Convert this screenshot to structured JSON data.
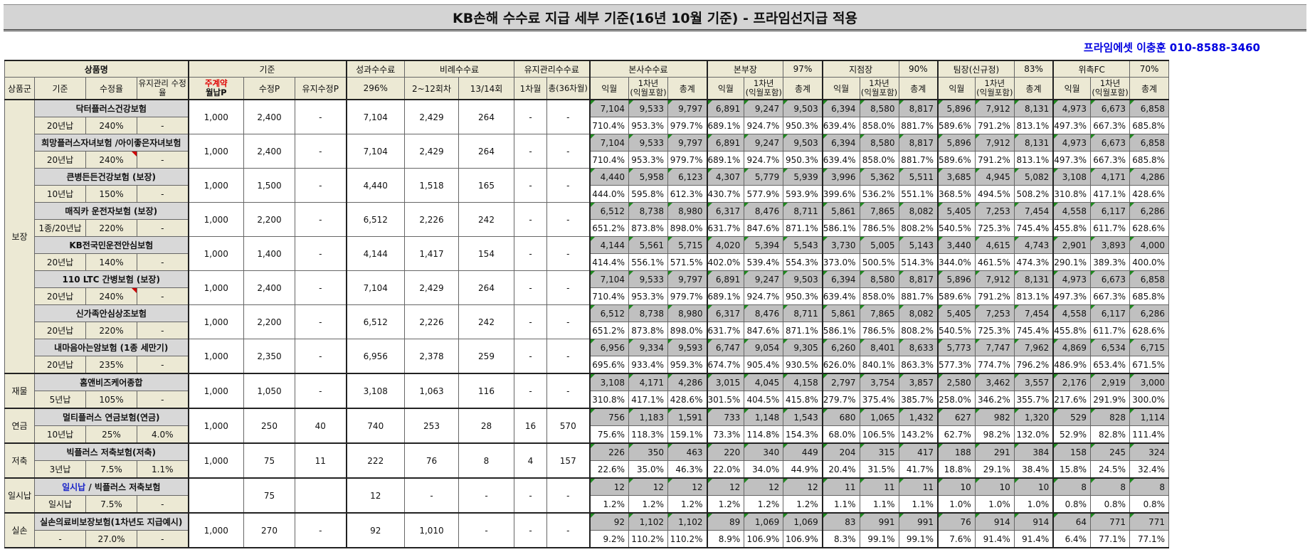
{
  "title": "KB손해 수수료 지급 세부 기준(16년 10월 기준) - 프라임선지급 적용",
  "contact": "프라임에셋 이충훈 010-8588-3460",
  "header": {
    "product_name": "상품명",
    "gijun": "기준",
    "performance_fee": "성과수수료",
    "proportional_fee": "비례수수료",
    "maintenance_fee": "유지관리수수료",
    "hq_fee": "본사수수료",
    "bonbujang": "본부장",
    "bonbujang_pct": "97%",
    "jijeomjang": "지점장",
    "jijeomjang_pct": "90%",
    "timjang": "팀장(신규정)",
    "timjang_pct": "83%",
    "fc": "위촉FC",
    "fc_pct": "70%",
    "sub": {
      "group": "상품군",
      "gijun": "기준",
      "rate": "수정율",
      "maint_rate": "유지관리 수정율",
      "premium_top": "주계약",
      "premium_bottom": "월납P",
      "modified_p": "수정P",
      "maint_p": "유지수정P",
      "perf_pct": "296%",
      "p1": "2~12회차",
      "p2": "13/14회",
      "m1": "1차월",
      "m2": "총(36차월)",
      "ikwol": "익월",
      "first_year_top": "1차년",
      "first_year_bottom": "(익월포함)",
      "total": "총계"
    }
  },
  "groups": [
    {
      "name": "보장",
      "rows": 8
    },
    {
      "name": "재물",
      "rows": 1
    },
    {
      "name": "연금",
      "rows": 1
    },
    {
      "name": "저축",
      "rows": 1
    },
    {
      "name": "일시납",
      "rows": 1
    },
    {
      "name": "실손",
      "rows": 1
    }
  ],
  "products": [
    {
      "name": "닥터플러스건강보험",
      "name_blue": "",
      "gijun": "20년납",
      "rate": "240%",
      "maint": "-",
      "premium": "1,000",
      "mod_p": "2,400",
      "maint_p": "-",
      "perf": "7,104",
      "p1": "2,429",
      "p2": "264",
      "m1": "-",
      "m2": "-",
      "amounts": [
        "7,104",
        "9,533",
        "9,797",
        "6,891",
        "9,247",
        "9,503",
        "6,394",
        "8,580",
        "8,817",
        "5,896",
        "7,912",
        "8,131",
        "4,973",
        "6,673",
        "6,858"
      ],
      "pcts": [
        "710.4%",
        "953.3%",
        "979.7%",
        "689.1%",
        "924.7%",
        "950.3%",
        "639.4%",
        "858.0%",
        "881.7%",
        "589.6%",
        "791.2%",
        "813.1%",
        "497.3%",
        "667.3%",
        "685.8%"
      ]
    },
    {
      "name": "희망플러스자녀보험 /아이좋은자녀보험",
      "name_blue": "",
      "gijun": "20년납",
      "rate": "240%",
      "maint": "-",
      "premium": "1,000",
      "mod_p": "2,400",
      "maint_p": "-",
      "perf": "7,104",
      "p1": "2,429",
      "p2": "264",
      "m1": "-",
      "m2": "-",
      "amounts": [
        "7,104",
        "9,533",
        "9,797",
        "6,891",
        "9,247",
        "9,503",
        "6,394",
        "8,580",
        "8,817",
        "5,896",
        "7,912",
        "8,131",
        "4,973",
        "6,673",
        "6,858"
      ],
      "pcts": [
        "710.4%",
        "953.3%",
        "979.7%",
        "689.1%",
        "924.7%",
        "950.3%",
        "639.4%",
        "858.0%",
        "881.7%",
        "589.6%",
        "791.2%",
        "813.1%",
        "497.3%",
        "667.3%",
        "685.8%"
      ]
    },
    {
      "name": "큰병든든건강보험 (보장)",
      "name_blue": "",
      "gijun": "10년납",
      "rate": "150%",
      "maint": "-",
      "premium": "1,000",
      "mod_p": "1,500",
      "maint_p": "-",
      "perf": "4,440",
      "p1": "1,518",
      "p2": "165",
      "m1": "-",
      "m2": "-",
      "amounts": [
        "4,440",
        "5,958",
        "6,123",
        "4,307",
        "5,779",
        "5,939",
        "3,996",
        "5,362",
        "5,511",
        "3,685",
        "4,945",
        "5,082",
        "3,108",
        "4,171",
        "4,286"
      ],
      "pcts": [
        "444.0%",
        "595.8%",
        "612.3%",
        "430.7%",
        "577.9%",
        "593.9%",
        "399.6%",
        "536.2%",
        "551.1%",
        "368.5%",
        "494.5%",
        "508.2%",
        "310.8%",
        "417.1%",
        "428.6%"
      ]
    },
    {
      "name": "매직카 운전자보험 (보장)",
      "name_blue": "",
      "gijun": "1종/20년납",
      "rate": "220%",
      "maint": "-",
      "premium": "1,000",
      "mod_p": "2,200",
      "maint_p": "-",
      "perf": "6,512",
      "p1": "2,226",
      "p2": "242",
      "m1": "-",
      "m2": "-",
      "amounts": [
        "6,512",
        "8,738",
        "8,980",
        "6,317",
        "8,476",
        "8,711",
        "5,861",
        "7,865",
        "8,082",
        "5,405",
        "7,253",
        "7,454",
        "4,558",
        "6,117",
        "6,286"
      ],
      "pcts": [
        "651.2%",
        "873.8%",
        "898.0%",
        "631.7%",
        "847.6%",
        "871.1%",
        "586.1%",
        "786.5%",
        "808.2%",
        "540.5%",
        "725.3%",
        "745.4%",
        "455.8%",
        "611.7%",
        "628.6%"
      ]
    },
    {
      "name": "KB전국민운전안심보험",
      "name_blue": "",
      "gijun": "20년납",
      "rate": "140%",
      "maint": "-",
      "premium": "1,000",
      "mod_p": "1,400",
      "maint_p": "-",
      "perf": "4,144",
      "p1": "1,417",
      "p2": "154",
      "m1": "-",
      "m2": "-",
      "amounts": [
        "4,144",
        "5,561",
        "5,715",
        "4,020",
        "5,394",
        "5,543",
        "3,730",
        "5,005",
        "5,143",
        "3,440",
        "4,615",
        "4,743",
        "2,901",
        "3,893",
        "4,000"
      ],
      "pcts": [
        "414.4%",
        "556.1%",
        "571.5%",
        "402.0%",
        "539.4%",
        "554.3%",
        "373.0%",
        "500.5%",
        "514.3%",
        "344.0%",
        "461.5%",
        "474.3%",
        "290.1%",
        "389.3%",
        "400.0%"
      ]
    },
    {
      "name": "110 LTC 간병보험 (보장)",
      "name_blue": "",
      "gijun": "20년납",
      "rate": "240%",
      "maint": "-",
      "premium": "1,000",
      "mod_p": "2,400",
      "maint_p": "-",
      "perf": "7,104",
      "p1": "2,429",
      "p2": "264",
      "m1": "-",
      "m2": "-",
      "amounts": [
        "7,104",
        "9,533",
        "9,797",
        "6,891",
        "9,247",
        "9,503",
        "6,394",
        "8,580",
        "8,817",
        "5,896",
        "7,912",
        "8,131",
        "4,973",
        "6,673",
        "6,858"
      ],
      "pcts": [
        "710.4%",
        "953.3%",
        "979.7%",
        "689.1%",
        "924.7%",
        "950.3%",
        "639.4%",
        "858.0%",
        "881.7%",
        "589.6%",
        "791.2%",
        "813.1%",
        "497.3%",
        "667.3%",
        "685.8%"
      ]
    },
    {
      "name": "신가족안심상조보험",
      "name_blue": "",
      "gijun": "20년납",
      "rate": "220%",
      "maint": "-",
      "premium": "1,000",
      "mod_p": "2,200",
      "maint_p": "-",
      "perf": "6,512",
      "p1": "2,226",
      "p2": "242",
      "m1": "-",
      "m2": "-",
      "amounts": [
        "6,512",
        "8,738",
        "8,980",
        "6,317",
        "8,476",
        "8,711",
        "5,861",
        "7,865",
        "8,082",
        "5,405",
        "7,253",
        "7,454",
        "4,558",
        "6,117",
        "6,286"
      ],
      "pcts": [
        "651.2%",
        "873.8%",
        "898.0%",
        "631.7%",
        "847.6%",
        "871.1%",
        "586.1%",
        "786.5%",
        "808.2%",
        "540.5%",
        "725.3%",
        "745.4%",
        "455.8%",
        "611.7%",
        "628.6%"
      ]
    },
    {
      "name": "내마음아는암보험 (1종 세만기)",
      "name_blue": "",
      "gijun": "20년납",
      "rate": "235%",
      "maint": "-",
      "premium": "1,000",
      "mod_p": "2,350",
      "maint_p": "-",
      "perf": "6,956",
      "p1": "2,378",
      "p2": "259",
      "m1": "-",
      "m2": "-",
      "amounts": [
        "6,956",
        "9,334",
        "9,593",
        "6,747",
        "9,054",
        "9,305",
        "6,260",
        "8,401",
        "8,633",
        "5,773",
        "7,747",
        "7,962",
        "4,869",
        "6,534",
        "6,715"
      ],
      "pcts": [
        "695.6%",
        "933.4%",
        "959.3%",
        "674.7%",
        "905.4%",
        "930.5%",
        "626.0%",
        "840.1%",
        "863.3%",
        "577.3%",
        "774.7%",
        "796.2%",
        "486.9%",
        "653.4%",
        "671.5%"
      ]
    },
    {
      "name": "홈앤비즈케어종합",
      "name_blue": "",
      "gijun": "5년납",
      "rate": "105%",
      "maint": "-",
      "premium": "1,000",
      "mod_p": "1,050",
      "maint_p": "-",
      "perf": "3,108",
      "p1": "1,063",
      "p2": "116",
      "m1": "-",
      "m2": "-",
      "amounts": [
        "3,108",
        "4,171",
        "4,286",
        "3,015",
        "4,045",
        "4,158",
        "2,797",
        "3,754",
        "3,857",
        "2,580",
        "3,462",
        "3,557",
        "2,176",
        "2,919",
        "3,000"
      ],
      "pcts": [
        "310.8%",
        "417.1%",
        "428.6%",
        "301.5%",
        "404.5%",
        "415.8%",
        "279.7%",
        "375.4%",
        "385.7%",
        "258.0%",
        "346.2%",
        "355.7%",
        "217.6%",
        "291.9%",
        "300.0%"
      ]
    },
    {
      "name": "멀티플러스 연금보험(연금)",
      "name_blue": "",
      "gijun": "10년납",
      "rate": "25%",
      "maint": "4.0%",
      "premium": "1,000",
      "mod_p": "250",
      "maint_p": "40",
      "perf": "740",
      "p1": "253",
      "p2": "28",
      "m1": "16",
      "m2": "570",
      "amounts": [
        "756",
        "1,183",
        "1,591",
        "733",
        "1,148",
        "1,543",
        "680",
        "1,065",
        "1,432",
        "627",
        "982",
        "1,320",
        "529",
        "828",
        "1,114"
      ],
      "pcts": [
        "75.6%",
        "118.3%",
        "159.1%",
        "73.3%",
        "114.8%",
        "154.3%",
        "68.0%",
        "106.5%",
        "143.2%",
        "62.7%",
        "98.2%",
        "132.0%",
        "52.9%",
        "82.8%",
        "111.4%"
      ]
    },
    {
      "name": "빅플러스 저축보험(저축)",
      "name_blue": "",
      "gijun": "3년납",
      "rate": "7.5%",
      "maint": "1.1%",
      "premium": "1,000",
      "mod_p": "75",
      "maint_p": "11",
      "perf": "222",
      "p1": "76",
      "p2": "8",
      "m1": "4",
      "m2": "157",
      "amounts": [
        "226",
        "350",
        "463",
        "220",
        "340",
        "449",
        "204",
        "315",
        "417",
        "188",
        "291",
        "384",
        "158",
        "245",
        "324"
      ],
      "pcts": [
        "22.6%",
        "35.0%",
        "46.3%",
        "22.0%",
        "34.0%",
        "44.9%",
        "20.4%",
        "31.5%",
        "41.7%",
        "18.8%",
        "29.1%",
        "38.4%",
        "15.8%",
        "24.5%",
        "32.4%"
      ]
    },
    {
      "name": " / 빅플러스 저축보험",
      "name_blue": "일시납",
      "gijun": "일시납",
      "rate": "7.5%",
      "maint": "-",
      "premium": "",
      "mod_p": "75",
      "maint_p": "",
      "perf": "12",
      "p1": "-",
      "p2": "-",
      "m1": "-",
      "m2": "-",
      "amounts": [
        "12",
        "12",
        "12",
        "12",
        "12",
        "12",
        "11",
        "11",
        "11",
        "10",
        "10",
        "10",
        "8",
        "8",
        "8"
      ],
      "pcts": [
        "1.2%",
        "1.2%",
        "1.2%",
        "1.2%",
        "1.2%",
        "1.2%",
        "1.1%",
        "1.1%",
        "1.1%",
        "1.0%",
        "1.0%",
        "1.0%",
        "0.8%",
        "0.8%",
        "0.8%"
      ]
    },
    {
      "name": "실손의료비보장보험(1차년도 지급예시)",
      "name_blue": "",
      "gijun": "-",
      "rate": "27.0%",
      "maint": "-",
      "premium": "1,000",
      "mod_p": "270",
      "maint_p": "-",
      "perf": "92",
      "p1": "1,010",
      "p2": "-",
      "m1": "-",
      "m2": "-",
      "amounts": [
        "92",
        "1,102",
        "1,102",
        "89",
        "1,069",
        "1,069",
        "83",
        "991",
        "991",
        "76",
        "914",
        "914",
        "64",
        "771",
        "771"
      ],
      "pcts": [
        "9.2%",
        "110.2%",
        "110.2%",
        "8.9%",
        "106.9%",
        "106.9%",
        "8.3%",
        "99.1%",
        "99.1%",
        "7.6%",
        "91.4%",
        "91.4%",
        "6.4%",
        "77.1%",
        "77.1%"
      ]
    }
  ]
}
